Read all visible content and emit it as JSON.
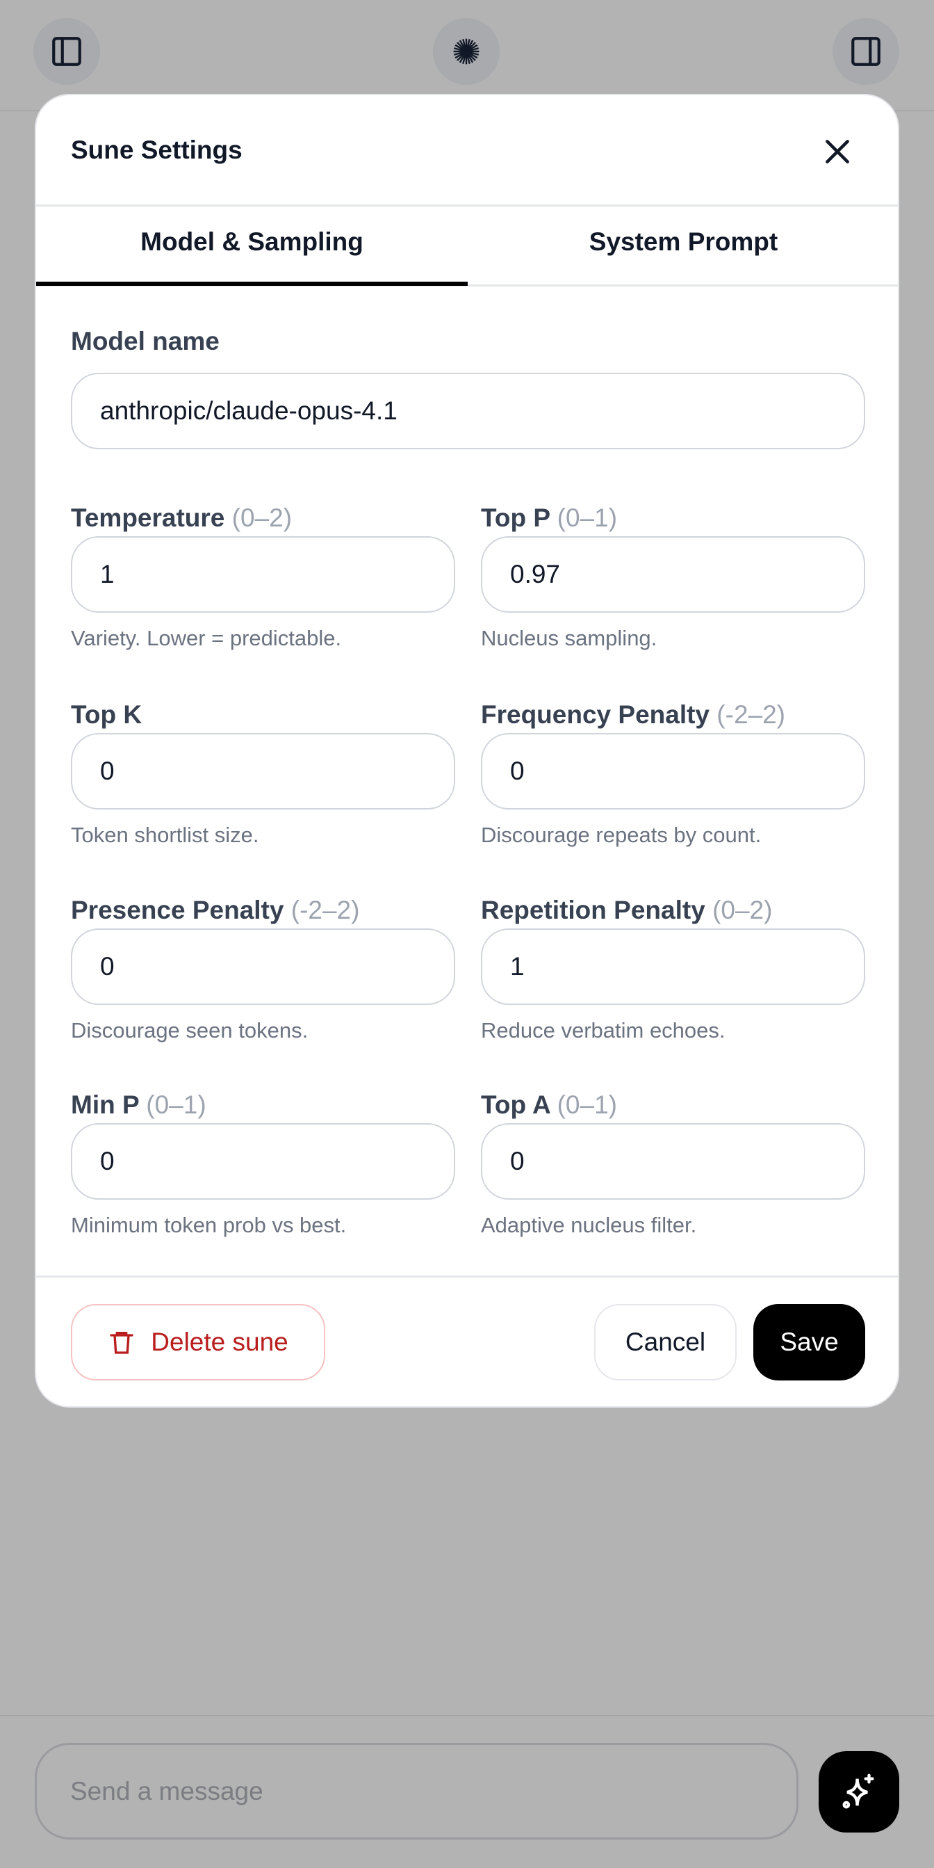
{
  "topbar": {
    "left_icon": "sidebar-left-icon",
    "center_icon": "sun-burst-icon",
    "right_icon": "sidebar-right-icon"
  },
  "modal": {
    "title": "Sune Settings",
    "close_icon": "close-icon",
    "tabs": [
      {
        "label": "Model & Sampling",
        "active": true
      },
      {
        "label": "System Prompt",
        "active": false
      }
    ],
    "model": {
      "label": "Model name",
      "value": "anthropic/claude-opus-4.1"
    },
    "fields": [
      {
        "label": "Temperature",
        "range": "(0–2)",
        "value": "1",
        "help": "Variety. Lower = predictable."
      },
      {
        "label": "Top P",
        "range": "(0–1)",
        "value": "0.97",
        "help": "Nucleus sampling."
      },
      {
        "label": "Top K",
        "range": "",
        "value": "0",
        "help": "Token shortlist size."
      },
      {
        "label": "Frequency Penalty",
        "range": "(-2–2)",
        "value": "0",
        "help": "Discourage repeats by count."
      },
      {
        "label": "Presence Penalty",
        "range": "(-2–2)",
        "value": "0",
        "help": "Discourage seen tokens."
      },
      {
        "label": "Repetition Penalty",
        "range": "(0–2)",
        "value": "1",
        "help": "Reduce verbatim echoes."
      },
      {
        "label": "Min P",
        "range": "(0–1)",
        "value": "0",
        "help": "Minimum token prob vs best."
      },
      {
        "label": "Top A",
        "range": "(0–1)",
        "value": "0",
        "help": "Adaptive nucleus filter."
      }
    ],
    "footer": {
      "delete_label": "Delete sune",
      "cancel_label": "Cancel",
      "save_label": "Save"
    }
  },
  "composer": {
    "placeholder": "Send a message",
    "send_icon": "sparkles-icon"
  },
  "colors": {
    "danger": "#b91c1c",
    "primary": "#000000",
    "overlay": "#b3b3b3"
  }
}
